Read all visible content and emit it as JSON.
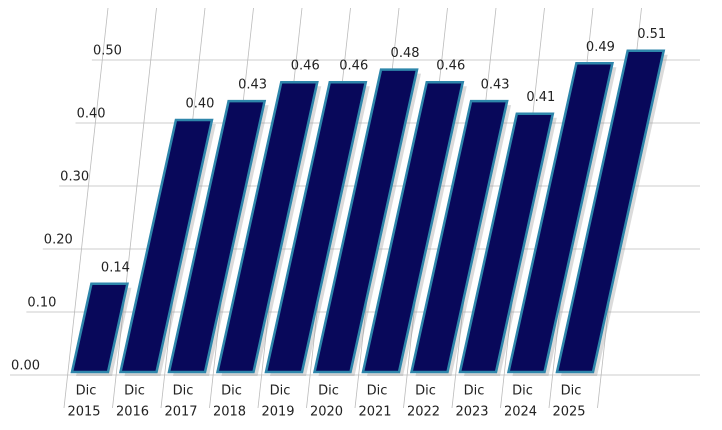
{
  "chart_data": {
    "type": "bar",
    "categories": [
      [
        "Dic",
        "2015"
      ],
      [
        "Dic",
        "2016"
      ],
      [
        "Dic",
        "2017"
      ],
      [
        "Dic",
        "2018"
      ],
      [
        "Dic",
        "2019"
      ],
      [
        "Dic",
        "2020"
      ],
      [
        "Dic",
        "2021"
      ],
      [
        "Dic",
        "2022"
      ],
      [
        "Dic",
        "2023"
      ],
      [
        "Dic",
        "2024"
      ],
      [
        "Dic",
        "2025"
      ]
    ],
    "values": [
      0.14,
      0.4,
      0.43,
      0.46,
      0.46,
      0.48,
      0.46,
      0.43,
      0.41,
      0.49,
      0.51
    ],
    "value_labels": [
      "0.14",
      "0.40",
      "0.43",
      "0.46",
      "0.46",
      "0.48",
      "0.46",
      "0.43",
      "0.41",
      "0.49",
      "0.51"
    ],
    "color": "#08085a",
    "edge_color": "#2e86ab",
    "ylim": [
      0,
      0.5
    ],
    "yticks": [
      {
        "value": 0,
        "label": "0.00"
      },
      {
        "value": 0.1,
        "label": "0.10"
      },
      {
        "value": 0.2,
        "label": "0.20"
      },
      {
        "value": 0.3,
        "label": "0.30"
      },
      {
        "value": 0.4,
        "label": "0.40"
      },
      {
        "value": 0.5,
        "label": "0.50"
      }
    ],
    "grid": true
  }
}
